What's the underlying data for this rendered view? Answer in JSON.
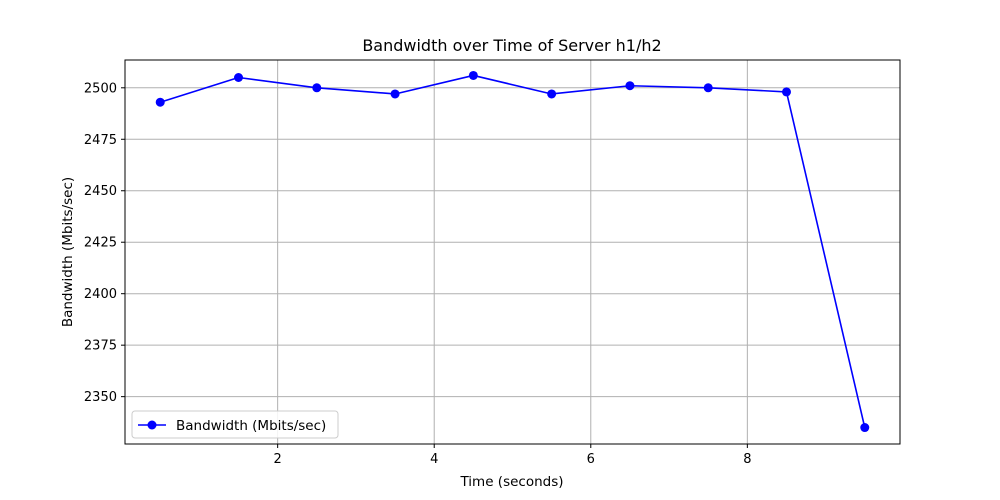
{
  "chart_data": {
    "type": "line",
    "title": "Bandwidth over Time of Server h1/h2",
    "xlabel": "Time (seconds)",
    "ylabel": "Bandwidth (Mbits/sec)",
    "x": [
      0.5,
      1.5,
      2.5,
      3.5,
      4.5,
      5.5,
      6.5,
      7.5,
      8.5,
      9.5
    ],
    "series": [
      {
        "name": "Bandwidth (Mbits/sec)",
        "color": "#0000ff",
        "marker": "circle",
        "values": [
          2493,
          2505,
          2500,
          2497,
          2506,
          2497,
          2501,
          2500,
          2498,
          2335
        ]
      }
    ],
    "xlim": [
      0.05,
      9.95
    ],
    "ylim": [
      2327,
      2513.5
    ],
    "xticks": [
      2,
      4,
      6,
      8
    ],
    "yticks": [
      2350,
      2375,
      2400,
      2425,
      2450,
      2475,
      2500
    ],
    "grid": true,
    "legend_position": "lower-left"
  }
}
